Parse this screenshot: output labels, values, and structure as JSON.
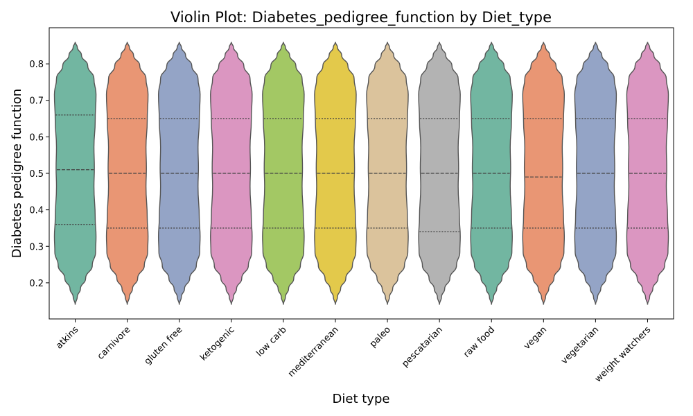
{
  "chart_data": {
    "type": "violin",
    "title": "Violin Plot: Diabetes_pedigree_function by Diet_type",
    "x_label": "Diet type",
    "y_label": "Diabetes pedigree function",
    "categories": [
      "atkins",
      "carnivore",
      "gluten free",
      "ketogenic",
      "low carb",
      "mediterranean",
      "paleo",
      "pescatarian",
      "raw food",
      "vegan",
      "vegetarian",
      "weight watchers"
    ],
    "colors": [
      "#72b6a1",
      "#e99674",
      "#94a4c6",
      "#db96c1",
      "#a3c864",
      "#e3c94b",
      "#dbc39c",
      "#b3b3b3",
      "#72b6a1",
      "#e99674",
      "#94a4c6",
      "#db96c1"
    ],
    "min": [
      0.14,
      0.14,
      0.14,
      0.14,
      0.14,
      0.14,
      0.14,
      0.14,
      0.14,
      0.14,
      0.14,
      0.14
    ],
    "q1": [
      0.36,
      0.35,
      0.35,
      0.35,
      0.35,
      0.35,
      0.35,
      0.34,
      0.35,
      0.35,
      0.35,
      0.35
    ],
    "median": [
      0.51,
      0.5,
      0.5,
      0.5,
      0.5,
      0.5,
      0.5,
      0.5,
      0.5,
      0.49,
      0.5,
      0.5
    ],
    "q3": [
      0.66,
      0.65,
      0.65,
      0.65,
      0.65,
      0.65,
      0.65,
      0.65,
      0.65,
      0.65,
      0.65,
      0.65
    ],
    "max": [
      0.86,
      0.86,
      0.86,
      0.86,
      0.86,
      0.86,
      0.86,
      0.86,
      0.86,
      0.86,
      0.86,
      0.86
    ],
    "ylim": [
      0.101,
      0.899
    ],
    "yticks": [
      0.2,
      0.3,
      0.4,
      0.5,
      0.6,
      0.7,
      0.8
    ]
  }
}
